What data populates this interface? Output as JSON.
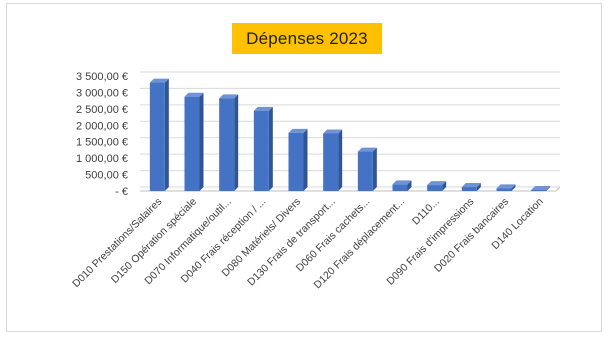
{
  "chart_data": {
    "type": "bar",
    "title": "Dépenses 2023",
    "categories": [
      "D010 Prestations/Salaires",
      "D150 Opération spéciale",
      "D070 Informatique/outil...",
      "D040 Frais réception / ...",
      "D080 Matériels/ Divers",
      "D130 Frais de transport...",
      "D060 Frais cachets...",
      "D120 Frais déplacement...",
      "D110...",
      "D090 Frais d'impressions",
      "D020 Frais bancaires",
      "D140 Location"
    ],
    "values": [
      3300,
      2870,
      2820,
      2440,
      1770,
      1750,
      1200,
      200,
      180,
      120,
      80,
      30
    ],
    "ylim": [
      0,
      3500
    ],
    "yticks": [
      {
        "value": 3500,
        "label": "3 500,00 €"
      },
      {
        "value": 3000,
        "label": "3 000,00 €"
      },
      {
        "value": 2500,
        "label": "2 500,00 €"
      },
      {
        "value": 2000,
        "label": "2 000,00 €"
      },
      {
        "value": 1500,
        "label": "1 500,00 €"
      },
      {
        "value": 1000,
        "label": "1 000,00 €"
      },
      {
        "value": 500,
        "label": "500,00 €"
      },
      {
        "value": 0,
        "label": "-   €"
      }
    ],
    "grid": true,
    "bar_color": "#4472c4",
    "bar_side_color": "#2f5597",
    "bar_top_color": "#6f93d4",
    "title_background": "#ffc000"
  }
}
